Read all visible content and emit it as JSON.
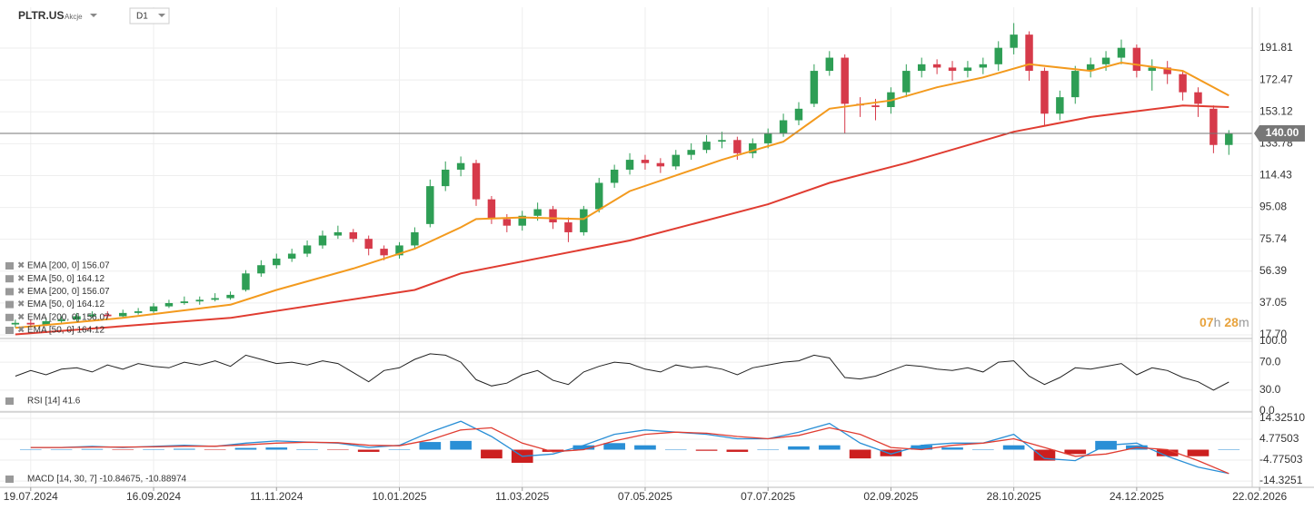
{
  "header": {
    "symbol": "PLTR.US",
    "kind": "Akcje",
    "interval": "D1"
  },
  "chart_data": [
    {
      "type": "candlestick",
      "xlim": [
        0,
        83
      ],
      "ylim": [
        17.15,
        210.0
      ],
      "yticks": [
        {
          "value": 17.7,
          "label": "17.70"
        },
        37.05,
        56.39,
        75.74,
        95.08,
        114.43,
        133.78,
        153.12,
        172.47,
        191.81
      ],
      "grid": true,
      "last_price": {
        "value": 140,
        "label": "140.00",
        "color": "#777777"
      },
      "countdown": {
        "hours": "07",
        "h": "h",
        "minutes": "28",
        "m": "m"
      },
      "up_color": "#2e9e55",
      "down_color": "#d63a4a",
      "open": [
        24,
        25,
        24,
        26,
        27,
        29,
        30,
        29,
        31,
        32,
        35,
        37,
        38,
        39,
        40,
        45,
        55,
        60,
        64,
        67,
        72,
        78,
        80,
        76,
        70,
        66,
        72,
        85,
        108,
        118,
        122,
        100,
        88,
        84,
        90,
        94,
        86,
        80,
        94,
        110,
        118,
        124,
        122,
        120,
        127,
        130,
        135,
        136,
        128,
        134,
        140,
        148,
        158,
        178,
        186,
        158,
        157,
        156,
        165,
        178,
        182,
        180,
        178,
        180,
        182,
        192,
        200,
        178,
        152,
        162,
        178,
        182,
        186,
        192,
        178,
        180,
        176,
        165,
        155,
        133
      ],
      "high": [
        27,
        27,
        28,
        29,
        31,
        32,
        32,
        33,
        34,
        37,
        39,
        41,
        41,
        43,
        44,
        57,
        63,
        67,
        70,
        75,
        81,
        84,
        82,
        78,
        72,
        74,
        83,
        112,
        123,
        126,
        124,
        102,
        91,
        93,
        98,
        96,
        89,
        96,
        113,
        121,
        128,
        127,
        125,
        130,
        134,
        139,
        141,
        138,
        137,
        143,
        152,
        159,
        182,
        190,
        188,
        162,
        161,
        168,
        182,
        186,
        185,
        184,
        184,
        186,
        196,
        207,
        202,
        180,
        166,
        181,
        186,
        190,
        197,
        194,
        185,
        184,
        178,
        168,
        157,
        142
      ],
      "low": [
        22,
        22,
        23,
        25,
        26,
        28,
        27,
        28,
        30,
        31,
        34,
        36,
        36,
        38,
        39,
        44,
        53,
        58,
        62,
        65,
        70,
        76,
        74,
        66,
        63,
        64,
        70,
        83,
        105,
        114,
        96,
        85,
        80,
        81,
        87,
        82,
        74,
        78,
        92,
        107,
        115,
        118,
        116,
        118,
        124,
        128,
        131,
        124,
        125,
        131,
        138,
        145,
        156,
        175,
        140,
        150,
        148,
        152,
        162,
        174,
        176,
        172,
        174,
        176,
        178,
        188,
        172,
        145,
        148,
        158,
        174,
        178,
        182,
        174,
        166,
        170,
        160,
        150,
        128,
        127
      ],
      "close": [
        25,
        24,
        26,
        27,
        29,
        30,
        29,
        31,
        32,
        35,
        37,
        38,
        39,
        40,
        42,
        55,
        60,
        64,
        67,
        72,
        78,
        80,
        76,
        70,
        66,
        72,
        80,
        108,
        118,
        122,
        100,
        88,
        84,
        90,
        94,
        86,
        80,
        94,
        110,
        118,
        124,
        122,
        120,
        127,
        130,
        135,
        136,
        128,
        134,
        140,
        148,
        155,
        178,
        186,
        158,
        157,
        156,
        165,
        178,
        182,
        180,
        178,
        180,
        182,
        192,
        200,
        178,
        152,
        162,
        178,
        182,
        186,
        192,
        178,
        180,
        176,
        165,
        158,
        133,
        140
      ],
      "series": [
        {
          "color": "#f39a1e",
          "x": [
            1,
            8,
            15,
            18,
            23,
            27,
            30,
            31,
            34,
            38,
            41,
            47,
            51,
            54,
            58,
            61,
            64,
            67,
            71,
            73,
            77,
            80
          ],
          "values": [
            22,
            28,
            36,
            45,
            58,
            70,
            83,
            88,
            89,
            88,
            105,
            124,
            135,
            155,
            160,
            168,
            174,
            182,
            178,
            183,
            178,
            163
          ]
        },
        {
          "color": "#e03c31",
          "x": [
            1,
            15,
            27,
            30,
            41,
            50,
            54,
            59,
            66,
            71,
            77,
            80
          ],
          "values": [
            18,
            28,
            45,
            55,
            75,
            97,
            110,
            122,
            141,
            150,
            157,
            156
          ]
        }
      ],
      "indicator_labels": [
        "EMA [200, 0] 156.07",
        "EMA [50, 0] 164.12",
        "EMA [200, 0] 156.07",
        "EMA [50, 0] 164.12",
        "EMA [200, 0] 156.07",
        "EMA [50, 0] 164.12"
      ]
    },
    {
      "type": "line",
      "xlim": [
        0,
        83
      ],
      "ylim": [
        0,
        100
      ],
      "yticks": [
        {
          "value": 100,
          "label": "100.0"
        },
        {
          "value": 70,
          "label": "70.0"
        },
        {
          "value": 30,
          "label": "30.0"
        },
        {
          "value": 0,
          "label": "0.0"
        }
      ],
      "color": "#222222",
      "values": [
        50,
        58,
        52,
        60,
        62,
        56,
        66,
        60,
        68,
        64,
        62,
        70,
        66,
        72,
        64,
        80,
        74,
        68,
        70,
        66,
        72,
        68,
        55,
        42,
        58,
        62,
        74,
        82,
        80,
        70,
        45,
        36,
        40,
        52,
        58,
        44,
        38,
        56,
        64,
        70,
        68,
        60,
        56,
        66,
        62,
        64,
        60,
        52,
        62,
        66,
        70,
        72,
        80,
        76,
        48,
        46,
        50,
        58,
        66,
        64,
        60,
        58,
        62,
        56,
        70,
        72,
        50,
        38,
        48,
        62,
        60,
        64,
        68,
        52,
        62,
        58,
        48,
        42,
        30,
        41.6
      ],
      "label": "RSI [14] 41.6"
    },
    {
      "type": "macd",
      "xlim": [
        0,
        83
      ],
      "ylim": [
        -17.2,
        16.8
      ],
      "yticks": [
        {
          "value": 14.3251,
          "label": "14.32510"
        },
        4.77503,
        -4.77503,
        -14.3251
      ],
      "x": [
        2,
        4,
        6,
        8,
        10,
        12,
        14,
        16,
        18,
        20,
        22,
        24,
        26,
        28,
        30,
        32,
        34,
        36,
        38,
        40,
        42,
        44,
        46,
        48,
        50,
        52,
        54,
        56,
        58,
        60,
        62,
        64,
        66,
        68,
        70,
        72,
        74,
        76,
        78,
        80
      ],
      "macd": {
        "color": "#2a8fd6",
        "values": [
          1,
          1,
          1.5,
          1,
          1.5,
          2,
          1.5,
          3,
          4,
          3.5,
          3,
          1,
          2,
          8,
          13,
          6,
          -3,
          -2,
          2,
          7,
          9,
          8,
          7,
          5,
          5,
          8,
          12,
          3,
          -2,
          2,
          3,
          3,
          7,
          -4,
          -5,
          2,
          3,
          -3,
          -8,
          -10.85
        ]
      },
      "signal": {
        "color": "#e03c31",
        "values": [
          1,
          1,
          1.2,
          1.2,
          1.3,
          1.6,
          1.6,
          2.2,
          3,
          3.4,
          3.2,
          2,
          1.8,
          4.5,
          9,
          10,
          3,
          -1,
          0,
          4,
          7,
          8,
          7.5,
          6,
          5,
          6.5,
          10,
          7,
          1,
          0,
          2,
          3,
          5,
          1,
          -3,
          -2,
          1,
          0,
          -5,
          -10.89
        ]
      },
      "histogram": {
        "up_color": "#2a8fd6",
        "down_color": "#cc1f1f",
        "values": [
          0,
          0,
          0.3,
          -0.2,
          0.2,
          0.4,
          -0.1,
          0.8,
          1,
          0.1,
          -0.2,
          -1,
          0.2,
          3.5,
          4,
          -4,
          -6,
          -1,
          2,
          3,
          2,
          0,
          -0.5,
          -1,
          0,
          1.5,
          2,
          -4,
          -3,
          2,
          1,
          0,
          2,
          -5,
          -2,
          4,
          2,
          -3,
          -3,
          0.04
        ]
      },
      "label": "MACD [14, 30, 7] -10.84675, -10.88974",
      "xticks": [
        {
          "value": 2,
          "label": "19.07.2024"
        },
        {
          "value": 10,
          "label": "16.09.2024"
        },
        {
          "value": 18,
          "label": "11.11.2024"
        },
        {
          "value": 26,
          "label": "10.01.2025"
        },
        {
          "value": 34,
          "label": "11.03.2025"
        },
        {
          "value": 42,
          "label": "07.05.2025"
        },
        {
          "value": 50,
          "label": "07.07.2025"
        },
        {
          "value": 58,
          "label": "02.09.2025"
        },
        {
          "value": 66,
          "label": "28.10.2025"
        },
        {
          "value": 74,
          "label": "24.12.2025"
        },
        {
          "value": 82,
          "label": "22.02.2026"
        }
      ]
    }
  ]
}
